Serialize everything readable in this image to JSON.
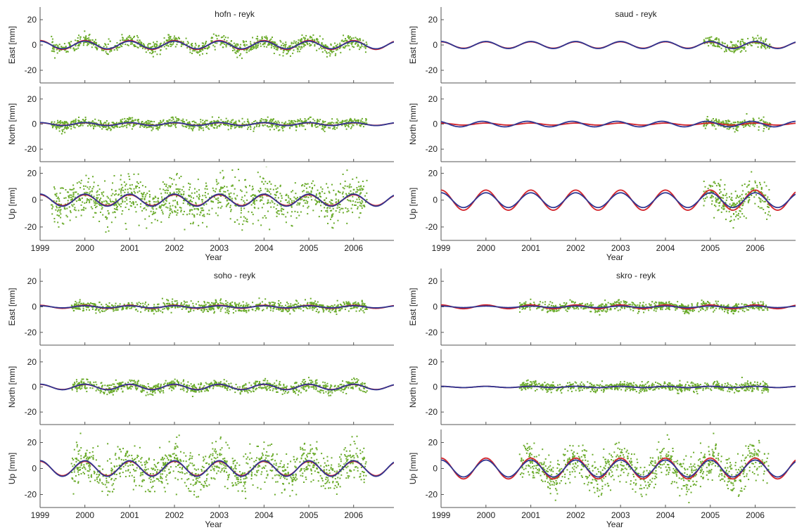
{
  "figure": {
    "colors": {
      "data": "#6aab2a",
      "model_red": "#d2232a",
      "model_blue": "#2f3692",
      "axis": "#555555"
    }
  },
  "chart_data": [
    {
      "type": "line",
      "station": "hofn - reyk",
      "x_label": "Year",
      "x_ticks": [
        "1999",
        "2000",
        "2001",
        "2002",
        "2003",
        "2004",
        "2005",
        "2006"
      ],
      "xlim": [
        1999,
        2006.9
      ],
      "data_span": [
        1999.25,
        2006.3
      ],
      "panels": [
        {
          "ylabel": "East [mm]",
          "yticks": [
            "20",
            "0",
            "-20"
          ],
          "ylim": [
            -30,
            30
          ],
          "amp_red": 3.5,
          "amp_blue": 3.0,
          "phase": 0.0,
          "noise": 2.5
        },
        {
          "ylabel": "North [mm]",
          "yticks": [
            "20",
            "0",
            "-20"
          ],
          "ylim": [
            -30,
            30
          ],
          "amp_red": 1.0,
          "amp_blue": 1.2,
          "phase": 0.0,
          "noise": 2.0
        },
        {
          "ylabel": "Up [mm]",
          "yticks": [
            "20",
            "0",
            "-20"
          ],
          "ylim": [
            -30,
            25
          ],
          "amp_red": 4.0,
          "amp_blue": 4.5,
          "phase": 0.0,
          "noise": 7.5
        }
      ]
    },
    {
      "type": "line",
      "station": "saud - reyk",
      "x_label": "Year",
      "x_ticks": [
        "1999",
        "2000",
        "2001",
        "2002",
        "2003",
        "2004",
        "2005",
        "2006"
      ],
      "xlim": [
        1999,
        2006.9
      ],
      "data_span": [
        2004.85,
        2006.35
      ],
      "panels": [
        {
          "ylabel": "East [mm]",
          "yticks": [
            "20",
            "0",
            "-20"
          ],
          "ylim": [
            -30,
            30
          ],
          "amp_red": 2.5,
          "amp_blue": 2.8,
          "phase": 0.0,
          "noise": 2.2
        },
        {
          "ylabel": "North [mm]",
          "yticks": [
            "20",
            "0",
            "-20"
          ],
          "ylim": [
            -30,
            30
          ],
          "amp_red": 0.8,
          "amp_blue": 2.2,
          "phase": 0.5,
          "noise": 2.0
        },
        {
          "ylabel": "Up [mm]",
          "yticks": [
            "20",
            "0",
            "-20"
          ],
          "ylim": [
            -30,
            25
          ],
          "amp_red": 7.5,
          "amp_blue": 5.5,
          "phase": 0.0,
          "noise": 6.0
        }
      ]
    },
    {
      "type": "line",
      "station": "soho - reyk",
      "x_label": "Year",
      "x_ticks": [
        "1999",
        "2000",
        "2001",
        "2002",
        "2003",
        "2004",
        "2005",
        "2006"
      ],
      "xlim": [
        1999,
        2006.9
      ],
      "data_span": [
        1999.7,
        2006.3
      ],
      "panels": [
        {
          "ylabel": "East [mm]",
          "yticks": [
            "20",
            "0",
            "-20"
          ],
          "ylim": [
            -30,
            30
          ],
          "amp_red": 1.2,
          "amp_blue": 0.8,
          "phase": 0.0,
          "noise": 2.0
        },
        {
          "ylabel": "North [mm]",
          "yticks": [
            "20",
            "0",
            "-20"
          ],
          "ylim": [
            -30,
            30
          ],
          "amp_red": 2.0,
          "amp_blue": 2.2,
          "phase": 0.0,
          "noise": 2.2
        },
        {
          "ylabel": "Up [mm]",
          "yticks": [
            "20",
            "0",
            "-20"
          ],
          "ylim": [
            -30,
            30
          ],
          "amp_red": 5.5,
          "amp_blue": 6.0,
          "phase": 0.0,
          "noise": 7.5
        }
      ]
    },
    {
      "type": "line",
      "station": "skro - reyk",
      "x_label": "Year",
      "x_ticks": [
        "1999",
        "2000",
        "2001",
        "2002",
        "2003",
        "2004",
        "2005",
        "2006"
      ],
      "xlim": [
        1999,
        2006.9
      ],
      "data_span": [
        2000.75,
        2006.3
      ],
      "panels": [
        {
          "ylabel": "East [mm]",
          "yticks": [
            "20",
            "0",
            "-20"
          ],
          "ylim": [
            -30,
            30
          ],
          "amp_red": 1.5,
          "amp_blue": 0.6,
          "phase": 0.0,
          "noise": 1.8
        },
        {
          "ylabel": "North [mm]",
          "yticks": [
            "20",
            "0",
            "-20"
          ],
          "ylim": [
            -30,
            30
          ],
          "amp_red": 0.5,
          "amp_blue": 0.5,
          "phase": 0.0,
          "noise": 1.8
        },
        {
          "ylabel": "Up [mm]",
          "yticks": [
            "20",
            "0",
            "-20"
          ],
          "ylim": [
            -30,
            30
          ],
          "amp_red": 8.0,
          "amp_blue": 6.5,
          "phase": 0.0,
          "noise": 7.0
        }
      ]
    }
  ]
}
